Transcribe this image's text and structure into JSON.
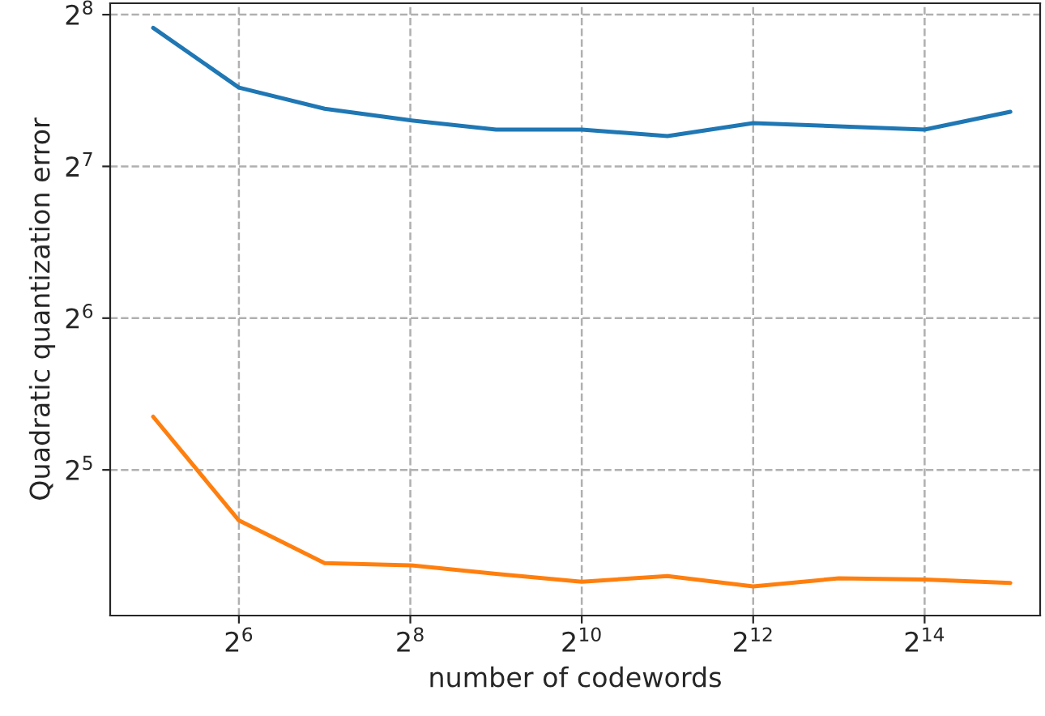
{
  "chart_data": {
    "type": "line",
    "xlabel": "number of codewords",
    "ylabel": "Quadratic quantization error",
    "x": [
      32,
      64,
      128,
      256,
      512,
      1024,
      2048,
      4096,
      8192,
      16384,
      32768
    ],
    "series": [
      {
        "color": "#1f77b4",
        "values": [
          241,
          183.5,
          166.6,
          158,
          151.4,
          151.4,
          147,
          156,
          153.7,
          151.4,
          164.3
        ]
      },
      {
        "color": "#ff7f0e",
        "values": [
          40.8,
          25.4,
          20.9,
          20.7,
          19.9,
          19.2,
          19.7,
          18.8,
          19.5,
          19.4,
          19.1
        ]
      }
    ],
    "log": "xy",
    "xlim": [
      22.6,
      41700
    ],
    "ylim": [
      16.45,
      269.7
    ],
    "xticks": [
      {
        "value": 64,
        "label": "2$^{6}$"
      },
      {
        "value": 256,
        "label": "2$^{8}$"
      },
      {
        "value": 1024,
        "label": "2$^{10}$"
      },
      {
        "value": 4096,
        "label": "2$^{12}$"
      },
      {
        "value": 16384,
        "label": "2$^{14}$"
      }
    ],
    "yticks": [
      {
        "value": 32,
        "label": "2$^{5}$"
      },
      {
        "value": 64,
        "label": "2$^{6}$"
      },
      {
        "value": 128,
        "label": "2$^{7}$"
      },
      {
        "value": 256,
        "label": "2$^{8}$"
      }
    ],
    "grid": true,
    "line_style": "solid",
    "marker": "none"
  }
}
